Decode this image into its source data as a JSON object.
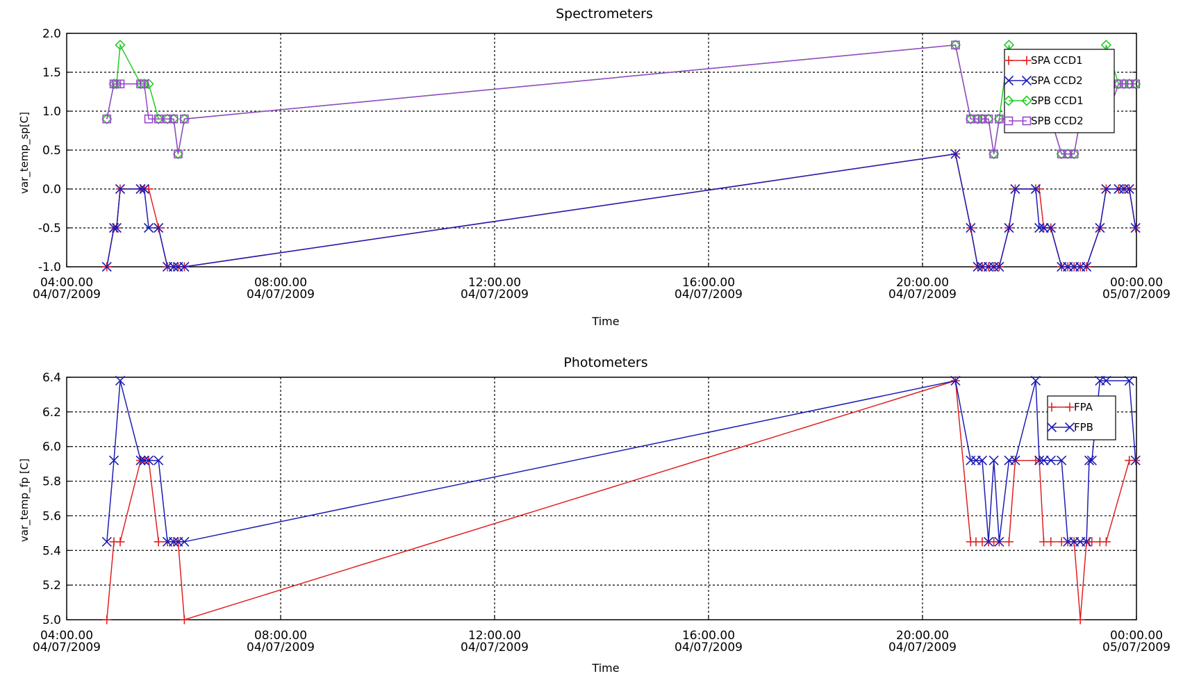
{
  "chart_data": [
    {
      "type": "line",
      "title": "Spectrometers",
      "xlabel": "Time",
      "ylabel": "var_temp_sp[C]",
      "xlim": [
        "2009-07-04 04:00",
        "2009-07-05 00:00"
      ],
      "ylim": [
        -1.0,
        2.0
      ],
      "yticks": [
        "2.0",
        "1.5",
        "1.0",
        "0.5",
        "0.0",
        "-0.5",
        "-1.0"
      ],
      "xticks": [
        {
          "time": "04:00.00",
          "date": "04/07/2009"
        },
        {
          "time": "08:00.00",
          "date": "04/07/2009"
        },
        {
          "time": "12:00.00",
          "date": "04/07/2009"
        },
        {
          "time": "16:00.00",
          "date": "04/07/2009"
        },
        {
          "time": "20:00.00",
          "date": "04/07/2009"
        },
        {
          "time": "00:00.00",
          "date": "05/07/2009"
        }
      ],
      "grid": true,
      "legend_position": "top-right",
      "series": [
        {
          "name": "SPA CCD1",
          "color": "#e02020",
          "marker": "plus",
          "x": [
            "2009-07-04 04:45",
            "2009-07-04 04:53",
            "2009-07-04 04:56",
            "2009-07-04 05:00",
            "2009-07-04 05:23",
            "2009-07-04 05:27",
            "2009-07-04 05:32",
            "2009-07-04 05:43",
            "2009-07-04 05:53",
            "2009-07-04 06:00",
            "2009-07-04 06:05",
            "2009-07-04 06:12",
            "2009-07-04 20:37",
            "2009-07-04 20:54",
            "2009-07-04 21:02",
            "2009-07-04 21:07",
            "2009-07-04 21:14",
            "2009-07-04 21:20",
            "2009-07-04 21:26",
            "2009-07-04 21:37",
            "2009-07-04 21:44",
            "2009-07-04 22:07",
            "2009-07-04 22:11",
            "2009-07-04 22:16",
            "2009-07-04 22:24",
            "2009-07-04 22:36",
            "2009-07-04 22:43",
            "2009-07-04 22:50",
            "2009-07-04 22:57",
            "2009-07-04 23:04",
            "2009-07-04 23:19",
            "2009-07-04 23:26",
            "2009-07-04 23:40",
            "2009-07-04 23:46",
            "2009-07-04 23:52",
            "2009-07-04 23:59"
          ],
          "y": [
            -1.0,
            -0.5,
            -0.5,
            0.0,
            0.0,
            0.0,
            0.0,
            -0.5,
            -1.0,
            -1.0,
            -1.0,
            -1.0,
            0.45,
            -0.5,
            -1.0,
            -1.0,
            -1.0,
            -1.0,
            -1.0,
            -0.5,
            0.0,
            0.0,
            0.0,
            -0.5,
            -0.5,
            -1.0,
            -1.0,
            -1.0,
            -1.0,
            -1.0,
            -0.5,
            0.0,
            0.0,
            0.0,
            0.0,
            -0.5
          ]
        },
        {
          "name": "SPA CCD2",
          "color": "#1c1cb4",
          "marker": "x",
          "x": [
            "2009-07-04 04:45",
            "2009-07-04 04:53",
            "2009-07-04 04:56",
            "2009-07-04 05:00",
            "2009-07-04 05:23",
            "2009-07-04 05:27",
            "2009-07-04 05:32",
            "2009-07-04 05:43",
            "2009-07-04 05:53",
            "2009-07-04 06:00",
            "2009-07-04 06:05",
            "2009-07-04 06:12",
            "2009-07-04 20:37",
            "2009-07-04 20:54",
            "2009-07-04 21:02",
            "2009-07-04 21:07",
            "2009-07-04 21:14",
            "2009-07-04 21:20",
            "2009-07-04 21:26",
            "2009-07-04 21:37",
            "2009-07-04 21:44",
            "2009-07-04 22:07",
            "2009-07-04 22:11",
            "2009-07-04 22:16",
            "2009-07-04 22:24",
            "2009-07-04 22:36",
            "2009-07-04 22:43",
            "2009-07-04 22:50",
            "2009-07-04 22:57",
            "2009-07-04 23:04",
            "2009-07-04 23:19",
            "2009-07-04 23:26",
            "2009-07-04 23:40",
            "2009-07-04 23:46",
            "2009-07-04 23:52",
            "2009-07-04 23:59"
          ],
          "y": [
            -1.0,
            -0.5,
            -0.5,
            0.0,
            0.0,
            0.0,
            -0.5,
            -0.5,
            -1.0,
            -1.0,
            -1.0,
            -1.0,
            0.45,
            -0.5,
            -1.0,
            -1.0,
            -1.0,
            -1.0,
            -1.0,
            -0.5,
            0.0,
            0.0,
            -0.5,
            -0.5,
            -0.5,
            -1.0,
            -1.0,
            -1.0,
            -1.0,
            -1.0,
            -0.5,
            0.0,
            0.0,
            0.0,
            0.0,
            -0.5
          ]
        },
        {
          "name": "SPB CCD1",
          "color": "#22cc22",
          "marker": "diamond",
          "x": [
            "2009-07-04 04:45",
            "2009-07-04 04:53",
            "2009-07-04 04:56",
            "2009-07-04 05:00",
            "2009-07-04 05:23",
            "2009-07-04 05:27",
            "2009-07-04 05:32",
            "2009-07-04 05:43",
            "2009-07-04 05:53",
            "2009-07-04 06:00",
            "2009-07-04 06:05",
            "2009-07-04 06:12",
            "2009-07-04 20:37",
            "2009-07-04 20:54",
            "2009-07-04 21:02",
            "2009-07-04 21:07",
            "2009-07-04 21:14",
            "2009-07-04 21:20",
            "2009-07-04 21:26",
            "2009-07-04 21:37",
            "2009-07-04 21:44",
            "2009-07-04 22:07",
            "2009-07-04 22:11",
            "2009-07-04 22:16",
            "2009-07-04 22:24",
            "2009-07-04 22:36",
            "2009-07-04 22:43",
            "2009-07-04 22:50",
            "2009-07-04 22:57",
            "2009-07-04 23:04",
            "2009-07-04 23:19",
            "2009-07-04 23:26",
            "2009-07-04 23:40",
            "2009-07-04 23:46",
            "2009-07-04 23:52",
            "2009-07-04 23:59"
          ],
          "y": [
            0.9,
            1.35,
            1.35,
            1.85,
            1.35,
            1.35,
            1.35,
            0.9,
            0.9,
            0.9,
            0.45,
            0.9,
            1.85,
            0.9,
            0.9,
            0.9,
            0.9,
            0.45,
            0.9,
            1.85,
            1.35,
            1.35,
            1.35,
            1.35,
            0.9,
            0.45,
            0.45,
            0.45,
            0.9,
            1.35,
            1.35,
            1.85,
            1.35,
            1.35,
            1.35,
            1.35
          ]
        },
        {
          "name": "SPB CCD2",
          "color": "#9944cc",
          "marker": "square",
          "x": [
            "2009-07-04 04:45",
            "2009-07-04 04:53",
            "2009-07-04 04:56",
            "2009-07-04 05:00",
            "2009-07-04 05:23",
            "2009-07-04 05:27",
            "2009-07-04 05:32",
            "2009-07-04 05:43",
            "2009-07-04 05:53",
            "2009-07-04 06:00",
            "2009-07-04 06:05",
            "2009-07-04 06:12",
            "2009-07-04 20:37",
            "2009-07-04 20:54",
            "2009-07-04 21:02",
            "2009-07-04 21:07",
            "2009-07-04 21:14",
            "2009-07-04 21:20",
            "2009-07-04 21:26",
            "2009-07-04 21:37",
            "2009-07-04 21:44",
            "2009-07-04 22:07",
            "2009-07-04 22:11",
            "2009-07-04 22:16",
            "2009-07-04 22:24",
            "2009-07-04 22:36",
            "2009-07-04 22:43",
            "2009-07-04 22:50",
            "2009-07-04 22:57",
            "2009-07-04 23:04",
            "2009-07-04 23:19",
            "2009-07-04 23:26",
            "2009-07-04 23:40",
            "2009-07-04 23:46",
            "2009-07-04 23:52",
            "2009-07-04 23:59"
          ],
          "y": [
            0.9,
            1.35,
            1.35,
            1.35,
            1.35,
            1.35,
            0.9,
            0.9,
            0.9,
            0.9,
            0.45,
            0.9,
            1.85,
            0.9,
            0.9,
            0.9,
            0.9,
            0.45,
            0.9,
            0.9,
            0.9,
            0.9,
            0.9,
            0.9,
            0.9,
            0.45,
            0.45,
            0.45,
            0.9,
            0.9,
            0.9,
            0.9,
            1.35,
            1.35,
            1.35,
            1.35
          ]
        }
      ]
    },
    {
      "type": "line",
      "title": "Photometers",
      "xlabel": "Time",
      "ylabel": "var_temp_fp [C]",
      "xlim": [
        "2009-07-04 04:00",
        "2009-07-05 00:00"
      ],
      "ylim": [
        5.0,
        6.4
      ],
      "yticks": [
        "6.4",
        "6.2",
        "6.0",
        "5.8",
        "5.6",
        "5.4",
        "5.2",
        "5.0"
      ],
      "xticks": [
        {
          "time": "04:00.00",
          "date": "04/07/2009"
        },
        {
          "time": "08:00.00",
          "date": "04/07/2009"
        },
        {
          "time": "12:00.00",
          "date": "04/07/2009"
        },
        {
          "time": "16:00.00",
          "date": "04/07/2009"
        },
        {
          "time": "20:00.00",
          "date": "04/07/2009"
        },
        {
          "time": "00:00.00",
          "date": "05/07/2009"
        }
      ],
      "grid": true,
      "legend_position": "top-right",
      "series": [
        {
          "name": "FPA",
          "color": "#e02020",
          "marker": "plus",
          "x": [
            "2009-07-04 04:45",
            "2009-07-04 04:53",
            "2009-07-04 05:00",
            "2009-07-04 05:23",
            "2009-07-04 05:27",
            "2009-07-04 05:32",
            "2009-07-04 05:43",
            "2009-07-04 05:53",
            "2009-07-04 06:00",
            "2009-07-04 06:05",
            "2009-07-04 06:12",
            "2009-07-04 20:37",
            "2009-07-04 20:54",
            "2009-07-04 21:00",
            "2009-07-04 21:07",
            "2009-07-04 21:14",
            "2009-07-04 21:20",
            "2009-07-04 21:26",
            "2009-07-04 21:37",
            "2009-07-04 21:44",
            "2009-07-04 22:07",
            "2009-07-04 22:11",
            "2009-07-04 22:16",
            "2009-07-04 22:24",
            "2009-07-04 22:36",
            "2009-07-04 22:43",
            "2009-07-04 22:50",
            "2009-07-04 22:57",
            "2009-07-04 23:04",
            "2009-07-04 23:07",
            "2009-07-04 23:10",
            "2009-07-04 23:19",
            "2009-07-04 23:26",
            "2009-07-04 23:52",
            "2009-07-04 23:59"
          ],
          "y": [
            5.0,
            5.45,
            5.45,
            5.92,
            5.92,
            5.92,
            5.45,
            5.45,
            5.45,
            5.45,
            5.0,
            6.38,
            5.45,
            5.45,
            5.45,
            5.45,
            5.45,
            5.45,
            5.45,
            5.92,
            5.92,
            5.92,
            5.45,
            5.45,
            5.45,
            5.45,
            5.45,
            5.0,
            5.45,
            5.45,
            5.45,
            5.45,
            5.45,
            5.92,
            5.92
          ]
        },
        {
          "name": "FPB",
          "color": "#1c1cb4",
          "marker": "x",
          "x": [
            "2009-07-04 04:45",
            "2009-07-04 04:53",
            "2009-07-04 05:00",
            "2009-07-04 05:23",
            "2009-07-04 05:27",
            "2009-07-04 05:32",
            "2009-07-04 05:43",
            "2009-07-04 05:53",
            "2009-07-04 06:00",
            "2009-07-04 06:05",
            "2009-07-04 06:12",
            "2009-07-04 20:37",
            "2009-07-04 20:54",
            "2009-07-04 21:00",
            "2009-07-04 21:07",
            "2009-07-04 21:14",
            "2009-07-04 21:20",
            "2009-07-04 21:26",
            "2009-07-04 21:37",
            "2009-07-04 21:44",
            "2009-07-04 22:07",
            "2009-07-04 22:11",
            "2009-07-04 22:16",
            "2009-07-04 22:24",
            "2009-07-04 22:36",
            "2009-07-04 22:43",
            "2009-07-04 22:50",
            "2009-07-04 22:57",
            "2009-07-04 23:04",
            "2009-07-04 23:07",
            "2009-07-04 23:10",
            "2009-07-04 23:19",
            "2009-07-04 23:26",
            "2009-07-04 23:52",
            "2009-07-04 23:59"
          ],
          "y": [
            5.45,
            5.92,
            6.38,
            5.92,
            5.92,
            5.92,
            5.92,
            5.45,
            5.45,
            5.45,
            5.45,
            6.38,
            5.92,
            5.92,
            5.92,
            5.45,
            5.92,
            5.45,
            5.92,
            5.92,
            6.38,
            5.92,
            5.92,
            5.92,
            5.92,
            5.45,
            5.45,
            5.45,
            5.45,
            5.92,
            5.92,
            6.38,
            6.38,
            6.38,
            5.92
          ]
        }
      ]
    }
  ]
}
